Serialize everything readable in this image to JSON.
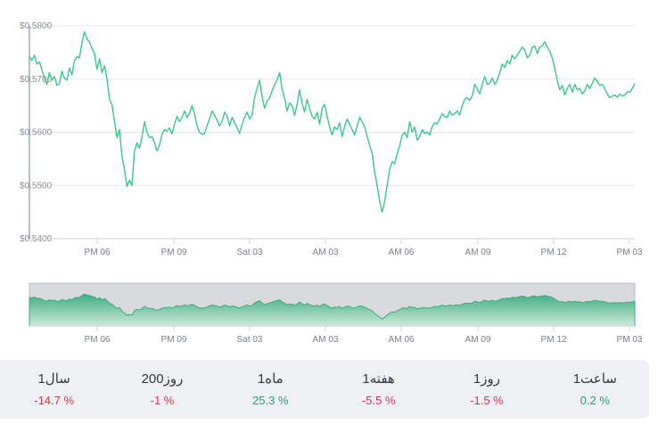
{
  "chart_data": {
    "type": "line",
    "ylim": [
      0.54,
      0.58
    ],
    "y_ticks": [
      "0.5800",
      "0.5700",
      "0.5600",
      "0.5500",
      "0.5400"
    ],
    "x_ticks": [
      "PM 06",
      "PM 09",
      "Sat 03",
      "AM 03",
      "AM 06",
      "AM 09",
      "PM 12",
      "PM 03"
    ],
    "series": [
      {
        "values": [
          0.5742,
          0.5735,
          0.5745,
          0.5728,
          0.5732,
          0.5718,
          0.5701,
          0.569,
          0.5712,
          0.5698,
          0.5705,
          0.5688,
          0.5692,
          0.5715,
          0.5702,
          0.5698,
          0.5721,
          0.5708,
          0.5735,
          0.5742,
          0.574,
          0.5768,
          0.5789,
          0.5775,
          0.577,
          0.5758,
          0.5748,
          0.5718,
          0.5738,
          0.5712,
          0.5725,
          0.57,
          0.5662,
          0.5652,
          0.562,
          0.559,
          0.5605,
          0.5555,
          0.553,
          0.5498,
          0.551,
          0.55,
          0.5565,
          0.558,
          0.557,
          0.5592,
          0.562,
          0.56,
          0.559,
          0.5592,
          0.558,
          0.5565,
          0.5576,
          0.5596,
          0.5605,
          0.5602,
          0.5608,
          0.5597,
          0.5615,
          0.563,
          0.562,
          0.5628,
          0.564,
          0.5628,
          0.5635,
          0.565,
          0.5635,
          0.5612,
          0.56,
          0.5596,
          0.5598,
          0.5612,
          0.5625,
          0.564,
          0.5632,
          0.5623,
          0.5612,
          0.562,
          0.5638,
          0.563,
          0.5612,
          0.5628,
          0.5618,
          0.5608,
          0.5598,
          0.5615,
          0.5628,
          0.5638,
          0.5625,
          0.5632,
          0.5665,
          0.5682,
          0.5698,
          0.5668,
          0.5645,
          0.5658,
          0.5665,
          0.5678,
          0.569,
          0.5698,
          0.5712,
          0.568,
          0.5665,
          0.564,
          0.5655,
          0.565,
          0.5632,
          0.5652,
          0.568,
          0.5655,
          0.5638,
          0.5662,
          0.5645,
          0.563,
          0.5625,
          0.5638,
          0.5615,
          0.5645,
          0.5652,
          0.563,
          0.561,
          0.5595,
          0.561,
          0.5605,
          0.5618,
          0.5592,
          0.561,
          0.5625,
          0.5615,
          0.5605,
          0.5595,
          0.5612,
          0.5628,
          0.562,
          0.561,
          0.5592,
          0.5575,
          0.556,
          0.5525,
          0.55,
          0.547,
          0.545,
          0.547,
          0.55,
          0.553,
          0.5545,
          0.554,
          0.556,
          0.5575,
          0.5595,
          0.56,
          0.559,
          0.562,
          0.56,
          0.561,
          0.5585,
          0.5592,
          0.5605,
          0.5598,
          0.56,
          0.5595,
          0.561,
          0.5618,
          0.5615,
          0.5625,
          0.5635,
          0.563,
          0.5628,
          0.564,
          0.5632,
          0.5635,
          0.564,
          0.5632,
          0.565,
          0.5662,
          0.5665,
          0.566,
          0.5668,
          0.569,
          0.5682,
          0.5672,
          0.569,
          0.5705,
          0.569,
          0.5692,
          0.5702,
          0.569,
          0.5698,
          0.5712,
          0.5728,
          0.5722,
          0.5735,
          0.5728,
          0.5745,
          0.5738,
          0.5745,
          0.5752,
          0.576,
          0.5755,
          0.574,
          0.5745,
          0.576,
          0.5762,
          0.5748,
          0.576,
          0.5762,
          0.577,
          0.576,
          0.5752,
          0.574,
          0.572,
          0.5698,
          0.568,
          0.5688,
          0.567,
          0.5682,
          0.569,
          0.5675,
          0.569,
          0.568,
          0.5682,
          0.5672,
          0.5678,
          0.569,
          0.5682,
          0.5692,
          0.5702,
          0.5695,
          0.5688,
          0.569,
          0.5682,
          0.5672,
          0.5665,
          0.5668,
          0.567,
          0.5666,
          0.5672,
          0.5668,
          0.567,
          0.5676,
          0.5675,
          0.5682,
          0.5692
        ]
      }
    ],
    "navigator": {
      "type": "area"
    },
    "colors": {
      "line": "#3cc88e",
      "area_top": "#3fae7f",
      "area_bottom": "#cde9dc",
      "axis": "#6b7fa6",
      "mask": "#d8dade",
      "grid": "#e8e8e8"
    }
  },
  "performance": [
    {
      "label": "1ساعت",
      "value": "0.2 %",
      "sign": "pos"
    },
    {
      "label": "1روز",
      "value": "-1.5 %",
      "sign": "neg"
    },
    {
      "label": "1هفته",
      "value": "-5.5 %",
      "sign": "neg"
    },
    {
      "label": "1ماه",
      "value": "25.3 %",
      "sign": "pos"
    },
    {
      "label": "200روز",
      "value": "-1 %",
      "sign": "neg"
    },
    {
      "label": "1سال",
      "value": "-14.7 %",
      "sign": "neg"
    }
  ]
}
